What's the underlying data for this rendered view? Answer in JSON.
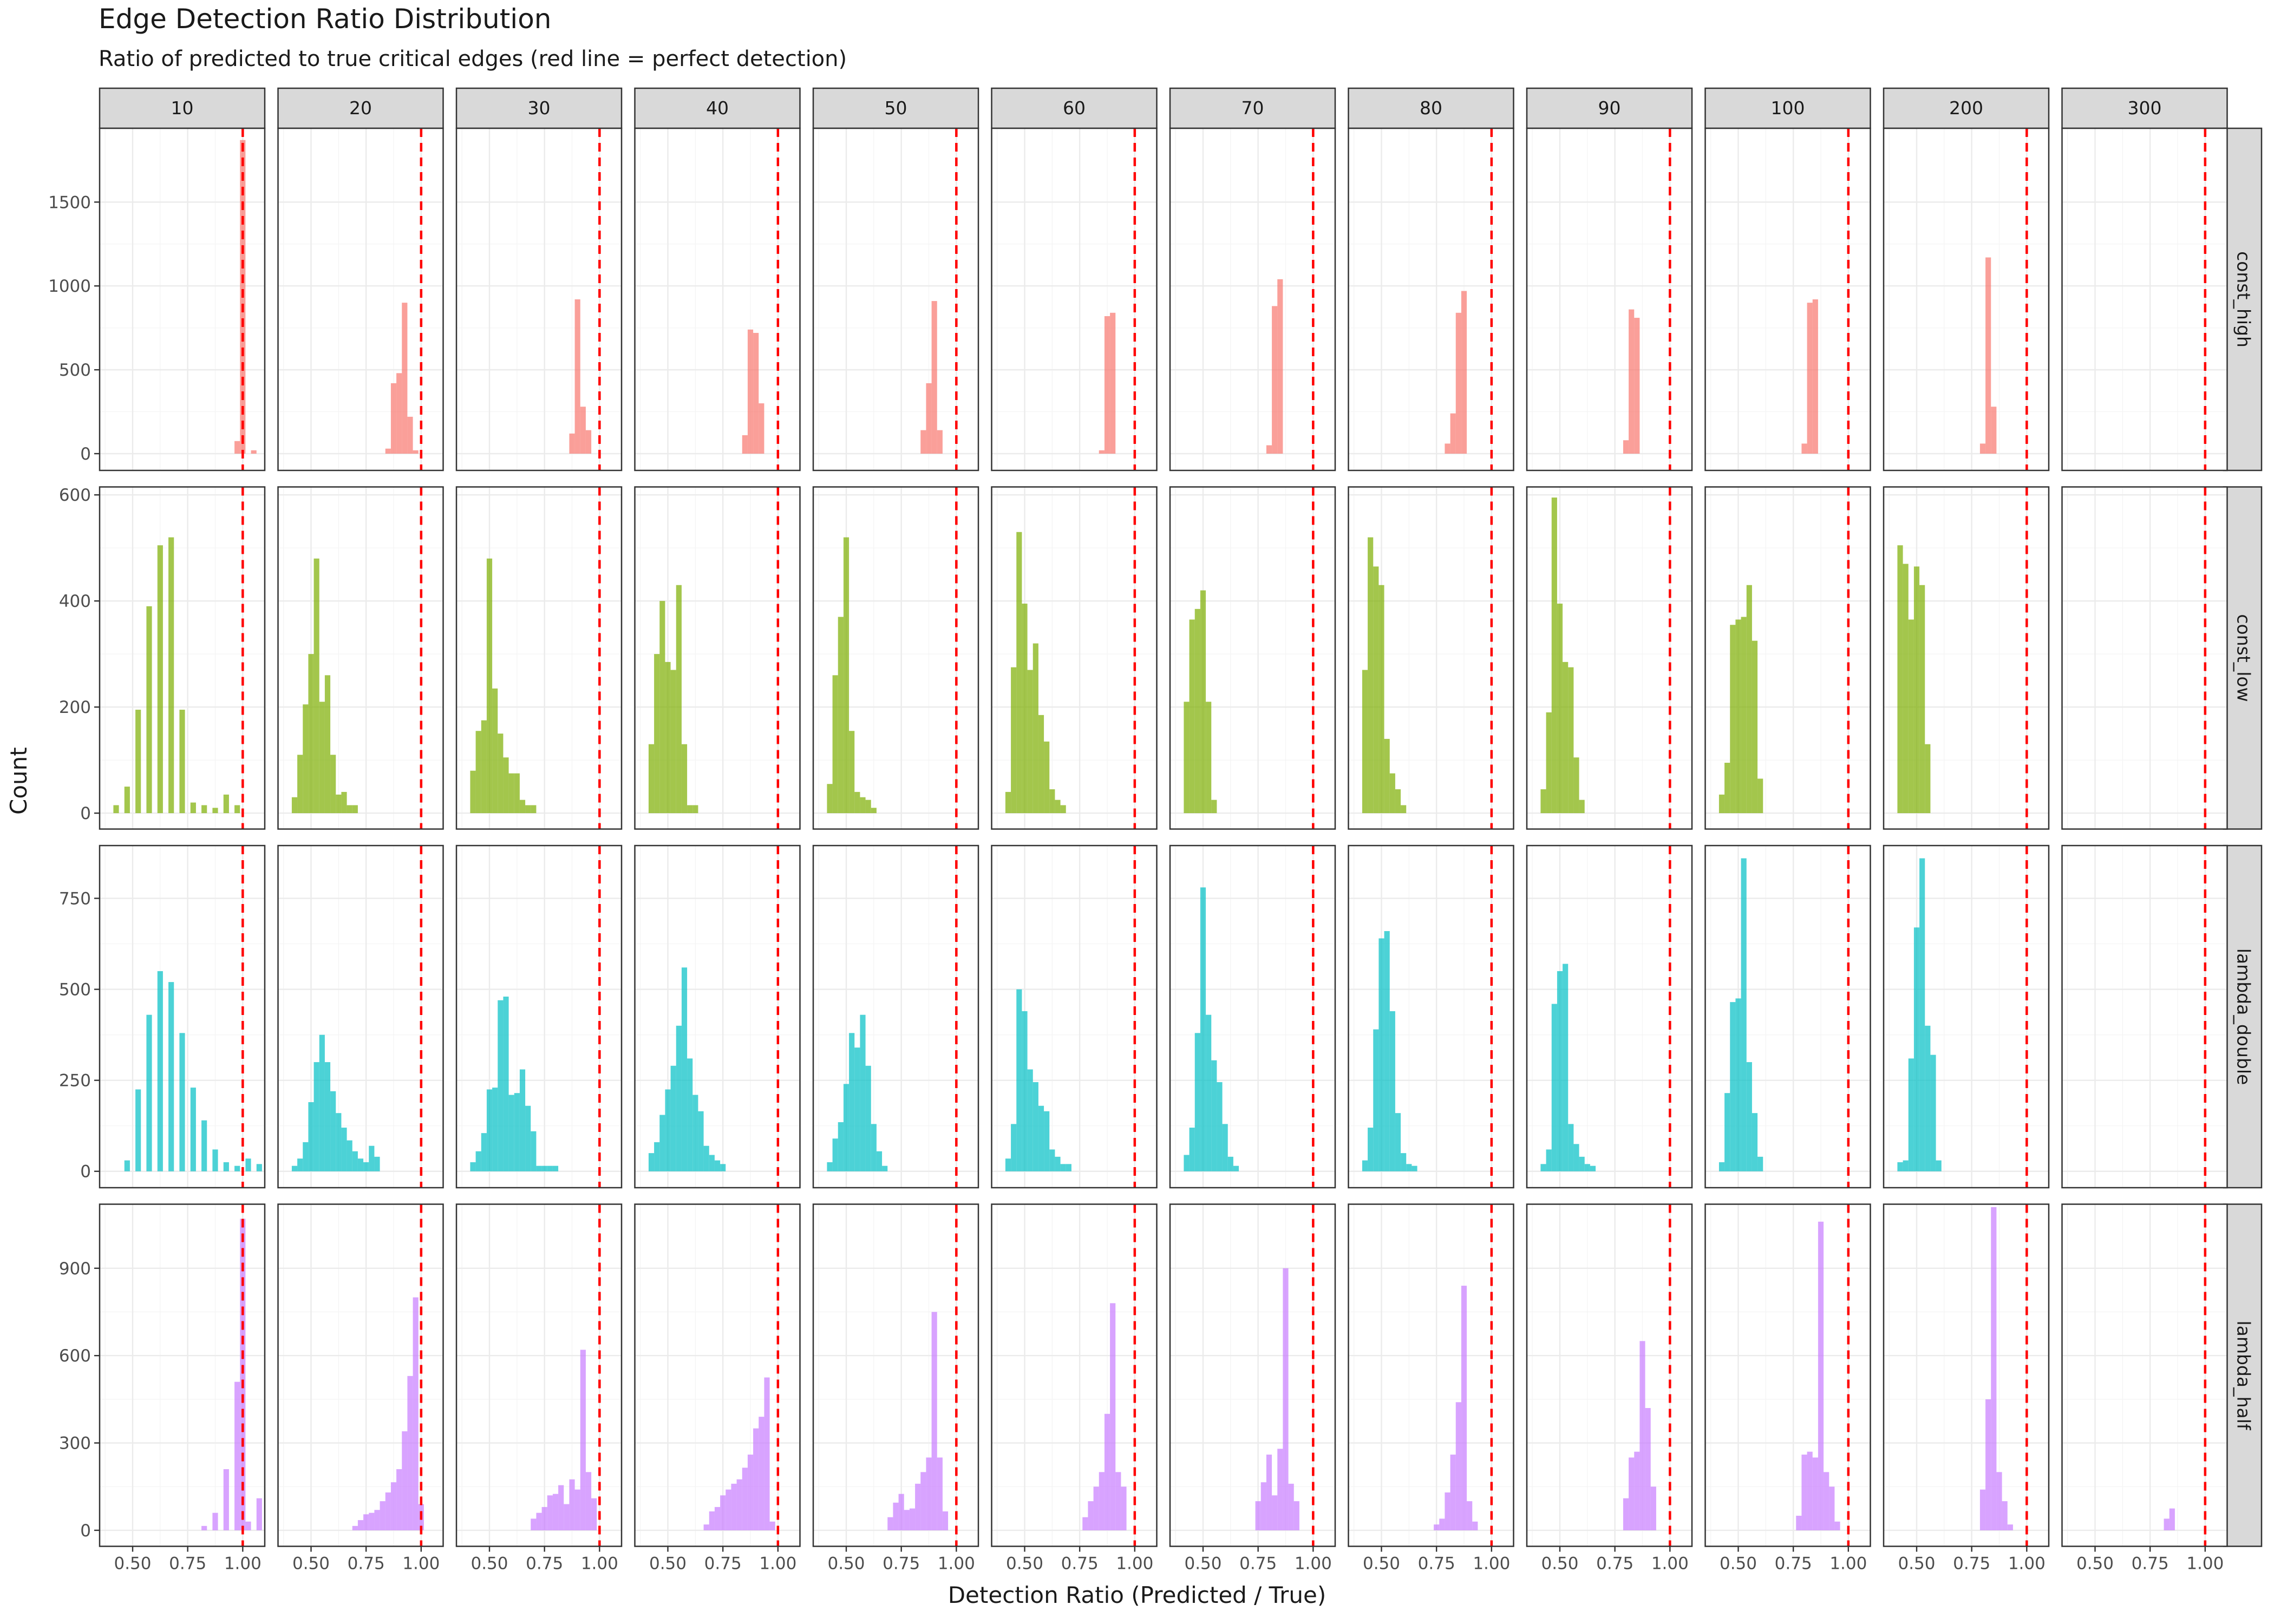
{
  "chart_data": {
    "type": "bar",
    "subtype": "faceted-histogram",
    "title": "Edge Detection Ratio Distribution",
    "subtitle": "Ratio of predicted to true critical edges (red line = perfect detection)",
    "xlabel": "Detection Ratio (Predicted / True)",
    "ylabel": "Count",
    "xlim": [
      0.35,
      1.1
    ],
    "x_ticks": [
      0.5,
      0.75,
      1.0
    ],
    "x_tick_labels": [
      "0.50",
      "0.75",
      "1.00"
    ],
    "reference_line": {
      "x": 1.0,
      "color": "#ff0000",
      "style": "dashed"
    },
    "grid": true,
    "theme": "bw",
    "bin_width": 0.025,
    "columns": [
      "10",
      "20",
      "30",
      "40",
      "50",
      "60",
      "70",
      "80",
      "90",
      "100",
      "200",
      "300"
    ],
    "rows": [
      {
        "name": "const_high",
        "color": "#f8766d",
        "ylim": [
          -100,
          1940
        ],
        "y_ticks": [
          0,
          500,
          1000,
          1500
        ],
        "y_tick_labels": [
          "0",
          "500",
          "1000",
          "1500"
        ]
      },
      {
        "name": "const_low",
        "color": "#7cae00",
        "ylim": [
          -30,
          615
        ],
        "y_ticks": [
          0,
          200,
          400,
          600
        ],
        "y_tick_labels": [
          "0",
          "200",
          "400",
          "600"
        ]
      },
      {
        "name": "lambda_double",
        "color": "#00bfc4",
        "ylim": [
          -45,
          895
        ],
        "y_ticks": [
          0,
          250,
          500,
          750
        ],
        "y_tick_labels": [
          "0",
          "250",
          "500",
          "750"
        ]
      },
      {
        "name": "lambda_half",
        "color": "#c77cff",
        "ylim": [
          -55,
          1120
        ],
        "y_ticks": [
          0,
          300,
          600,
          900
        ],
        "y_tick_labels": [
          "0",
          "300",
          "600",
          "900"
        ]
      }
    ],
    "panels": [
      [
        {
          "x": [
            0.975,
            1.0,
            1.05
          ],
          "y": [
            75,
            1870,
            20
          ]
        },
        {
          "x": [
            0.85,
            0.875,
            0.9,
            0.925,
            0.95,
            0.975
          ],
          "y": [
            30,
            420,
            480,
            900,
            220,
            20
          ]
        },
        {
          "x": [
            0.875,
            0.9,
            0.925,
            0.95
          ],
          "y": [
            120,
            920,
            280,
            140
          ]
        },
        {
          "x": [
            0.85,
            0.875,
            0.9,
            0.925
          ],
          "y": [
            110,
            740,
            720,
            300
          ]
        },
        {
          "x": [
            0.85,
            0.875,
            0.9,
            0.925
          ],
          "y": [
            140,
            420,
            910,
            140
          ]
        },
        {
          "x": [
            0.85,
            0.875,
            0.9
          ],
          "y": [
            20,
            820,
            840
          ]
        },
        {
          "x": [
            0.8,
            0.825,
            0.85
          ],
          "y": [
            50,
            880,
            1040
          ]
        },
        {
          "x": [
            0.8,
            0.825,
            0.85,
            0.875
          ],
          "y": [
            60,
            240,
            840,
            970
          ]
        },
        {
          "x": [
            0.8,
            0.825,
            0.85
          ],
          "y": [
            80,
            860,
            810
          ]
        },
        {
          "x": [
            0.8,
            0.825,
            0.85
          ],
          "y": [
            60,
            900,
            920
          ]
        },
        {
          "x": [
            0.8,
            0.825,
            0.85
          ],
          "y": [
            60,
            1170,
            280
          ]
        },
        {
          "x": [],
          "y": []
        }
      ],
      [
        {
          "x": [
            0.425,
            0.475,
            0.525,
            0.575,
            0.625,
            0.675,
            0.725,
            0.775,
            0.825,
            0.875,
            0.925,
            0.975
          ],
          "y": [
            15,
            50,
            195,
            390,
            505,
            520,
            195,
            20,
            15,
            10,
            35,
            15
          ]
        },
        {
          "x": [
            0.425,
            0.45,
            0.475,
            0.5,
            0.525,
            0.55,
            0.575,
            0.6,
            0.625,
            0.65,
            0.675,
            0.7
          ],
          "y": [
            30,
            110,
            205,
            300,
            480,
            210,
            260,
            110,
            35,
            40,
            15,
            15
          ]
        },
        {
          "x": [
            0.425,
            0.45,
            0.475,
            0.5,
            0.525,
            0.55,
            0.575,
            0.6,
            0.625,
            0.65,
            0.675,
            0.7
          ],
          "y": [
            80,
            155,
            175,
            480,
            235,
            150,
            105,
            75,
            75,
            25,
            15,
            15
          ]
        },
        {
          "x": [
            0.425,
            0.45,
            0.475,
            0.5,
            0.525,
            0.55,
            0.575,
            0.6,
            0.625
          ],
          "y": [
            130,
            300,
            400,
            285,
            270,
            430,
            130,
            15,
            15
          ]
        },
        {
          "x": [
            0.425,
            0.45,
            0.475,
            0.5,
            0.525,
            0.55,
            0.575,
            0.6,
            0.625
          ],
          "y": [
            55,
            260,
            370,
            520,
            155,
            40,
            30,
            25,
            10
          ]
        },
        {
          "x": [
            0.425,
            0.45,
            0.475,
            0.5,
            0.525,
            0.55,
            0.575,
            0.6,
            0.625,
            0.65,
            0.675
          ],
          "y": [
            40,
            275,
            530,
            395,
            270,
            320,
            185,
            135,
            45,
            25,
            15
          ]
        },
        {
          "x": [
            0.425,
            0.45,
            0.475,
            0.5,
            0.525,
            0.55
          ],
          "y": [
            210,
            365,
            385,
            420,
            210,
            25
          ]
        },
        {
          "x": [
            0.425,
            0.45,
            0.475,
            0.5,
            0.525,
            0.55,
            0.575,
            0.6
          ],
          "y": [
            270,
            520,
            465,
            430,
            140,
            75,
            45,
            15
          ]
        },
        {
          "x": [
            0.425,
            0.45,
            0.475,
            0.5,
            0.525,
            0.55,
            0.575,
            0.6
          ],
          "y": [
            45,
            190,
            595,
            395,
            285,
            275,
            105,
            25
          ]
        },
        {
          "x": [
            0.425,
            0.45,
            0.475,
            0.5,
            0.525,
            0.55,
            0.575,
            0.6
          ],
          "y": [
            35,
            95,
            355,
            365,
            370,
            430,
            325,
            65
          ]
        },
        {
          "x": [
            0.425,
            0.45,
            0.475,
            0.5,
            0.525,
            0.55
          ],
          "y": [
            505,
            470,
            365,
            465,
            430,
            130
          ]
        },
        {
          "x": [],
          "y": []
        }
      ],
      [
        {
          "x": [
            0.475,
            0.525,
            0.575,
            0.625,
            0.675,
            0.725,
            0.775,
            0.825,
            0.875,
            0.925,
            0.975,
            1.025,
            1.075
          ],
          "y": [
            30,
            225,
            430,
            550,
            520,
            380,
            230,
            140,
            60,
            25,
            15,
            35,
            20
          ]
        },
        {
          "x": [
            0.425,
            0.45,
            0.475,
            0.5,
            0.525,
            0.55,
            0.575,
            0.6,
            0.625,
            0.65,
            0.675,
            0.7,
            0.725,
            0.75,
            0.775,
            0.8
          ],
          "y": [
            15,
            35,
            80,
            190,
            300,
            375,
            300,
            220,
            160,
            120,
            85,
            55,
            35,
            25,
            70,
            40
          ]
        },
        {
          "x": [
            0.425,
            0.45,
            0.475,
            0.5,
            0.525,
            0.55,
            0.575,
            0.6,
            0.625,
            0.65,
            0.675,
            0.7,
            0.725,
            0.75,
            0.775,
            0.8
          ],
          "y": [
            25,
            55,
            105,
            225,
            230,
            470,
            480,
            210,
            215,
            280,
            180,
            110,
            15,
            15,
            15,
            15
          ]
        },
        {
          "x": [
            0.425,
            0.45,
            0.475,
            0.5,
            0.525,
            0.55,
            0.575,
            0.6,
            0.625,
            0.65,
            0.675,
            0.7,
            0.725,
            0.75
          ],
          "y": [
            50,
            80,
            155,
            225,
            290,
            400,
            560,
            310,
            210,
            165,
            70,
            45,
            30,
            20
          ]
        },
        {
          "x": [
            0.425,
            0.45,
            0.475,
            0.5,
            0.525,
            0.55,
            0.575,
            0.6,
            0.625,
            0.65,
            0.675
          ],
          "y": [
            25,
            90,
            135,
            240,
            380,
            340,
            430,
            290,
            130,
            55,
            15
          ]
        },
        {
          "x": [
            0.425,
            0.45,
            0.475,
            0.5,
            0.525,
            0.55,
            0.575,
            0.6,
            0.625,
            0.65,
            0.675,
            0.7
          ],
          "y": [
            35,
            130,
            500,
            440,
            280,
            245,
            180,
            165,
            60,
            40,
            20,
            20
          ]
        },
        {
          "x": [
            0.425,
            0.45,
            0.475,
            0.5,
            0.525,
            0.55,
            0.575,
            0.6,
            0.625,
            0.65
          ],
          "y": [
            45,
            120,
            380,
            780,
            430,
            305,
            245,
            130,
            40,
            15
          ]
        },
        {
          "x": [
            0.425,
            0.45,
            0.475,
            0.5,
            0.525,
            0.55,
            0.575,
            0.6,
            0.625,
            0.65
          ],
          "y": [
            30,
            120,
            390,
            640,
            660,
            440,
            160,
            50,
            20,
            15
          ]
        },
        {
          "x": [
            0.425,
            0.45,
            0.475,
            0.5,
            0.525,
            0.55,
            0.575,
            0.6,
            0.625,
            0.65
          ],
          "y": [
            20,
            60,
            460,
            550,
            570,
            130,
            75,
            40,
            20,
            15
          ]
        },
        {
          "x": [
            0.425,
            0.45,
            0.475,
            0.5,
            0.525,
            0.55,
            0.575,
            0.6
          ],
          "y": [
            25,
            215,
            465,
            475,
            860,
            300,
            160,
            40
          ]
        },
        {
          "x": [
            0.425,
            0.45,
            0.475,
            0.5,
            0.525,
            0.55,
            0.575,
            0.6
          ],
          "y": [
            25,
            30,
            310,
            670,
            860,
            400,
            320,
            30
          ]
        },
        {
          "x": [],
          "y": []
        }
      ],
      [
        {
          "x": [
            0.825,
            0.875,
            0.925,
            0.975,
            1.0,
            1.025,
            1.075
          ],
          "y": [
            15,
            60,
            210,
            510,
            1070,
            30,
            110
          ]
        },
        {
          "x": [
            0.7,
            0.725,
            0.75,
            0.775,
            0.8,
            0.825,
            0.85,
            0.875,
            0.9,
            0.925,
            0.95,
            0.975,
            1.0
          ],
          "y": [
            15,
            35,
            55,
            60,
            70,
            100,
            130,
            165,
            210,
            340,
            530,
            800,
            90
          ]
        },
        {
          "x": [
            0.7,
            0.725,
            0.75,
            0.775,
            0.8,
            0.825,
            0.85,
            0.875,
            0.9,
            0.925,
            0.95,
            0.975
          ],
          "y": [
            40,
            60,
            80,
            120,
            125,
            155,
            90,
            175,
            140,
            620,
            200,
            110
          ]
        },
        {
          "x": [
            0.675,
            0.7,
            0.725,
            0.75,
            0.775,
            0.8,
            0.825,
            0.85,
            0.875,
            0.9,
            0.925,
            0.95,
            0.975
          ],
          "y": [
            20,
            65,
            80,
            120,
            140,
            160,
            175,
            215,
            260,
            350,
            390,
            525,
            30
          ]
        },
        {
          "x": [
            0.7,
            0.725,
            0.75,
            0.775,
            0.8,
            0.825,
            0.85,
            0.875,
            0.9,
            0.925,
            0.95
          ],
          "y": [
            45,
            95,
            125,
            70,
            75,
            160,
            200,
            250,
            750,
            250,
            65
          ]
        },
        {
          "x": [
            0.775,
            0.8,
            0.825,
            0.85,
            0.875,
            0.9,
            0.925,
            0.95
          ],
          "y": [
            45,
            100,
            150,
            200,
            400,
            780,
            200,
            150
          ]
        },
        {
          "x": [
            0.75,
            0.775,
            0.8,
            0.825,
            0.85,
            0.875,
            0.9,
            0.925
          ],
          "y": [
            100,
            165,
            260,
            120,
            280,
            900,
            160,
            100
          ]
        },
        {
          "x": [
            0.75,
            0.775,
            0.8,
            0.825,
            0.85,
            0.875,
            0.9,
            0.925
          ],
          "y": [
            20,
            40,
            130,
            260,
            440,
            840,
            100,
            30
          ]
        },
        {
          "x": [
            0.8,
            0.825,
            0.85,
            0.875,
            0.9,
            0.925
          ],
          "y": [
            110,
            250,
            270,
            650,
            420,
            150
          ]
        },
        {
          "x": [
            0.775,
            0.8,
            0.825,
            0.85,
            0.875,
            0.9,
            0.925,
            0.95
          ],
          "y": [
            50,
            260,
            270,
            250,
            1060,
            200,
            150,
            30
          ]
        },
        {
          "x": [
            0.8,
            0.825,
            0.85,
            0.875,
            0.9,
            0.925
          ],
          "y": [
            140,
            450,
            1110,
            200,
            100,
            20
          ]
        },
        {
          "x": [
            0.825,
            0.85
          ],
          "y": [
            40,
            75
          ]
        }
      ]
    ]
  }
}
